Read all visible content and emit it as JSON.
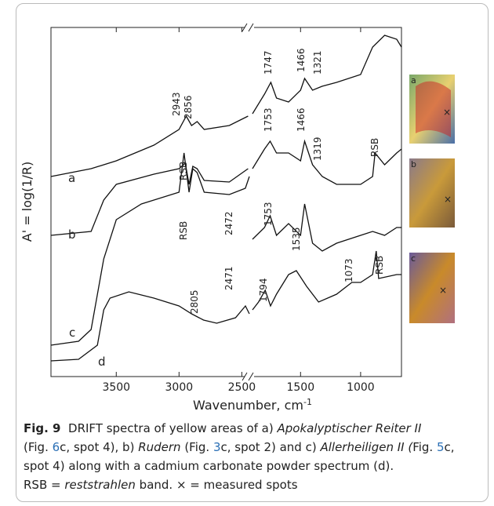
{
  "chart_data": {
    "type": "line",
    "x_label": "Wavenumber, cm",
    "x_label_sup": "-1",
    "y_label": "A' = log(1/R)",
    "xlim": [
      4020,
      660
    ],
    "x_break": [
      2440,
      1900
    ],
    "ylim": [
      0,
      445
    ],
    "xticks": [
      3500,
      3000,
      2500,
      1500,
      1000
    ],
    "series": [
      {
        "name": "a",
        "color": "#111111",
        "x": [
          4020,
          3700,
          3500,
          3200,
          3000,
          2943,
          2900,
          2856,
          2800,
          2600,
          2450,
          null,
          1900,
          1800,
          1747,
          1700,
          1600,
          1500,
          1466,
          1400,
          1321,
          1200,
          1000,
          900,
          800,
          700,
          660
        ],
        "values": [
          255,
          265,
          275,
          295,
          315,
          332,
          320,
          325,
          315,
          320,
          332,
          null,
          335,
          360,
          375,
          355,
          350,
          365,
          380,
          365,
          370,
          375,
          385,
          420,
          435,
          430,
          420
        ]
      },
      {
        "name": "b",
        "color": "#111111",
        "x": [
          4020,
          3700,
          3600,
          3500,
          3200,
          3000,
          2950,
          2920,
          2890,
          2856,
          2800,
          2600,
          2450,
          null,
          1900,
          1800,
          1753,
          1700,
          1600,
          1500,
          1466,
          1400,
          1319,
          1200,
          1000,
          900,
          880,
          800,
          700,
          660
        ],
        "values": [
          180,
          185,
          225,
          245,
          258,
          265,
          272,
          245,
          268,
          265,
          250,
          248,
          265,
          null,
          265,
          290,
          300,
          285,
          285,
          275,
          300,
          270,
          255,
          245,
          245,
          255,
          285,
          270,
          285,
          290
        ]
      },
      {
        "name": "c",
        "color": "#111111",
        "x": [
          4020,
          3800,
          3700,
          3600,
          3500,
          3300,
          3000,
          2960,
          2920,
          2890,
          2856,
          2800,
          2600,
          2472,
          2440,
          null,
          1900,
          1800,
          1753,
          1700,
          1600,
          1500,
          1466,
          1400,
          1319,
          1200,
          1000,
          900,
          800,
          700,
          660
        ],
        "values": [
          40,
          45,
          60,
          150,
          200,
          220,
          235,
          285,
          235,
          265,
          260,
          235,
          232,
          240,
          255,
          null,
          175,
          190,
          205,
          180,
          195,
          180,
          220,
          170,
          160,
          170,
          180,
          185,
          180,
          190,
          190
        ]
      },
      {
        "name": "d",
        "color": "#111111",
        "x": [
          4020,
          3800,
          3650,
          3600,
          3550,
          3400,
          3200,
          3000,
          2900,
          2805,
          2700,
          2550,
          2471,
          2440,
          null,
          1900,
          1850,
          1794,
          1750,
          1700,
          1600,
          1535,
          1450,
          1350,
          1200,
          1073,
          1000,
          900,
          870,
          850,
          700,
          660
        ],
        "values": [
          20,
          22,
          40,
          85,
          100,
          108,
          100,
          90,
          80,
          72,
          68,
          75,
          90,
          80,
          null,
          85,
          95,
          110,
          90,
          105,
          130,
          135,
          115,
          95,
          105,
          120,
          120,
          130,
          160,
          125,
          130,
          130
        ]
      }
    ],
    "annotations": [
      "2943",
      "2856",
      "1747",
      "1466",
      "1321",
      "RSB",
      "1753",
      "1466",
      "1319",
      "RSB",
      "RSB",
      "2472",
      "1753",
      "2805",
      "2471",
      "1794",
      "1535",
      "1073",
      "RSB"
    ],
    "insets": [
      "a",
      "b",
      "c"
    ]
  },
  "caption": {
    "lines": [
      [
        {
          "text": "Fig. 9",
          "style": "bold"
        },
        {
          "text": "  DRIFT spectra of yellow areas of a) ",
          "style": "plain"
        },
        {
          "text": "Apokalyptischer Reiter II",
          "style": "italic"
        }
      ],
      [
        {
          "text": "(Fig. ",
          "style": "plain"
        },
        {
          "text": "6",
          "style": "link"
        },
        {
          "text": "c, spot 4), b) ",
          "style": "plain"
        },
        {
          "text": "Rudern",
          "style": "italic"
        },
        {
          "text": " (Fig. ",
          "style": "plain"
        },
        {
          "text": "3",
          "style": "link"
        },
        {
          "text": "c, spot 2) and c) ",
          "style": "plain"
        },
        {
          "text": "Allerheiligen II (",
          "style": "italic"
        },
        {
          "text": "Fig. ",
          "style": "plain"
        },
        {
          "text": "5",
          "style": "link"
        },
        {
          "text": "c,",
          "style": "plain"
        }
      ],
      [
        {
          "text": "spot 4) along with a cadmium carbonate powder spectrum (d).",
          "style": "plain"
        }
      ],
      [
        {
          "text": "RSB = ",
          "style": "plain"
        },
        {
          "text": "reststrahlen",
          "style": "italic"
        },
        {
          "text": " band. × = measured spots",
          "style": "plain"
        }
      ]
    ]
  }
}
